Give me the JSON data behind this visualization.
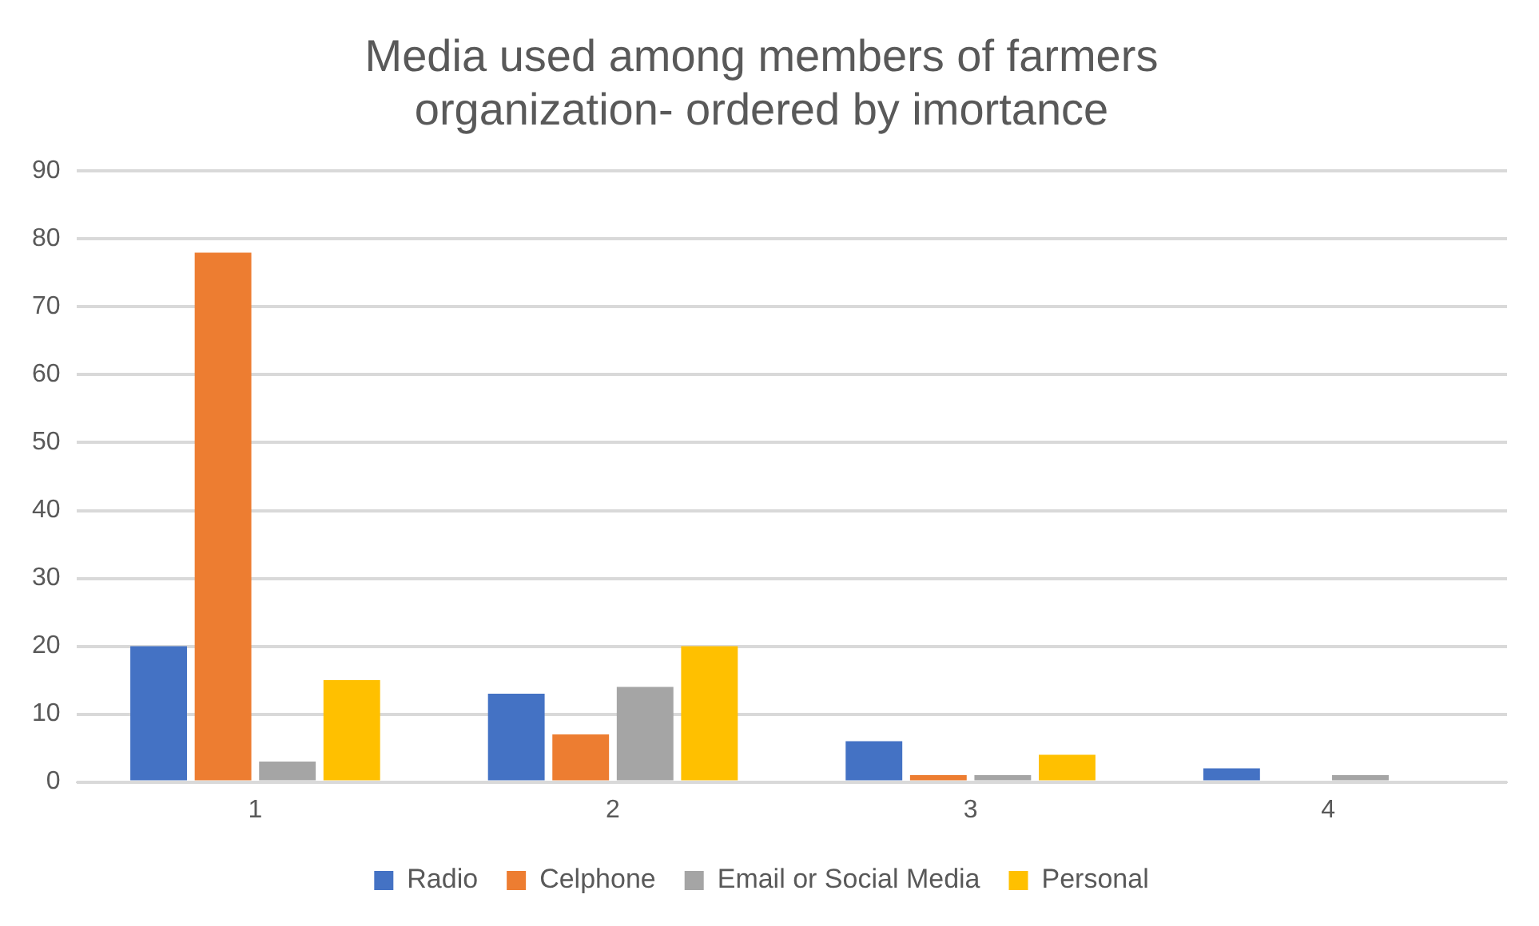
{
  "chart_data": {
    "type": "bar",
    "title": "Media used among members of farmers organization- ordered by imortance",
    "categories": [
      "1",
      "2",
      "3",
      "4"
    ],
    "series": [
      {
        "name": "Radio",
        "color": "#4472c4",
        "values": [
          20,
          13,
          6,
          2
        ]
      },
      {
        "name": "Celphone",
        "color": "#ed7d31",
        "values": [
          78,
          7,
          1,
          0
        ]
      },
      {
        "name": "Email or Social Media",
        "color": "#a5a5a5",
        "values": [
          3,
          14,
          1,
          1
        ]
      },
      {
        "name": "Personal",
        "color": "#ffc000",
        "values": [
          15,
          20,
          4,
          0
        ]
      }
    ],
    "ylim": [
      0,
      90
    ],
    "yticks": [
      0,
      10,
      20,
      30,
      40,
      50,
      60,
      70,
      80,
      90
    ],
    "grid": "y",
    "legend": "bottom"
  }
}
